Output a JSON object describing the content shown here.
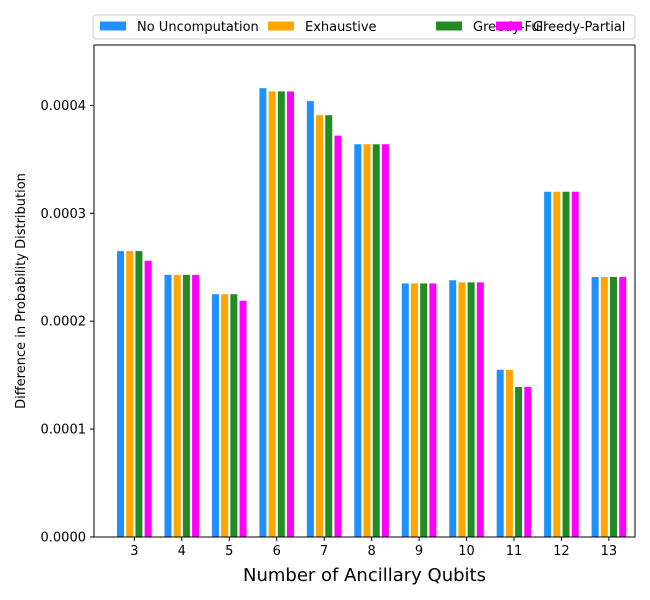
{
  "chart_data": {
    "type": "bar",
    "xlabel": "Number of Ancillary Qubits",
    "ylabel": "Difference in Probability Distribution",
    "categories": [
      "3",
      "4",
      "5",
      "6",
      "7",
      "8",
      "9",
      "10",
      "11",
      "12",
      "13"
    ],
    "ylim": [
      0,
      0.000456
    ],
    "yticks": [
      "0.0000",
      "0.0001",
      "0.0002",
      "0.0003",
      "0.0004"
    ],
    "ytick_values": [
      0,
      0.0001,
      0.0002,
      0.0003,
      0.0004
    ],
    "grid": false,
    "legend_position": "top",
    "series": [
      {
        "name": "No Uncomputation",
        "color": "#1e90ff",
        "values": [
          0.000265,
          0.000243,
          0.000225,
          0.000416,
          0.000404,
          0.000364,
          0.000235,
          0.000238,
          0.000155,
          0.00032,
          0.000241
        ]
      },
      {
        "name": "Exhaustive",
        "color": "#ffa500",
        "values": [
          0.000265,
          0.000243,
          0.000225,
          0.000413,
          0.000391,
          0.000364,
          0.000235,
          0.000236,
          0.000155,
          0.00032,
          0.000241
        ]
      },
      {
        "name": "Greedy-Full",
        "color": "#228b22",
        "values": [
          0.000265,
          0.000243,
          0.000225,
          0.000413,
          0.000391,
          0.000364,
          0.000235,
          0.000236,
          0.000139,
          0.00032,
          0.000241
        ]
      },
      {
        "name": "Greedy-Partial",
        "color": "#ff00ff",
        "values": [
          0.000256,
          0.000243,
          0.000219,
          0.000413,
          0.000372,
          0.000364,
          0.000235,
          0.000236,
          0.000139,
          0.00032,
          0.000241
        ]
      }
    ]
  }
}
